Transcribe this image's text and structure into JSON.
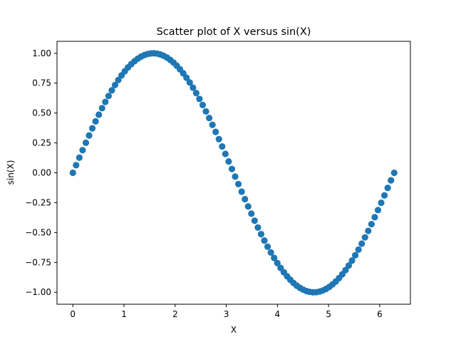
{
  "chart_data": {
    "type": "scatter",
    "title": "Scatter plot of X versus sin(X)",
    "xlabel": "X",
    "ylabel": "sin(X)",
    "xlim": [
      -0.31,
      6.6
    ],
    "ylim": [
      -1.1,
      1.1
    ],
    "xticks": [
      0,
      1,
      2,
      3,
      4,
      5,
      6
    ],
    "xtick_labels": [
      "0",
      "1",
      "2",
      "3",
      "4",
      "5",
      "6"
    ],
    "yticks": [
      1.0,
      0.75,
      0.5,
      0.25,
      0.0,
      -0.25,
      -0.5,
      -0.75,
      -1.0
    ],
    "ytick_labels": [
      "1.00",
      "0.75",
      "0.50",
      "0.25",
      "0.00",
      "−0.25",
      "−0.50",
      "−0.75",
      "−1.00"
    ],
    "grid": false,
    "marker_color": "#1f77b4",
    "series": [
      {
        "x": [
          0.0,
          0.0635,
          0.1269,
          0.1904,
          0.2539,
          0.3173,
          0.3808,
          0.4443,
          0.5077,
          0.5712,
          0.6347,
          0.6981,
          0.7616,
          0.8251,
          0.8885,
          0.952,
          1.0155,
          1.0789,
          1.1424,
          1.2059,
          1.2693,
          1.3328,
          1.3963,
          1.4597,
          1.5232,
          1.5867,
          1.6501,
          1.7136,
          1.7771,
          1.8405,
          1.904,
          1.9675,
          2.0309,
          2.0944,
          2.1579,
          2.2213,
          2.2848,
          2.3483,
          2.4117,
          2.4752,
          2.5387,
          2.6021,
          2.6656,
          2.7291,
          2.7925,
          2.856,
          2.9195,
          2.9829,
          3.0464,
          3.1099,
          3.1733,
          3.2368,
          3.3003,
          3.3637,
          3.4272,
          3.4907,
          3.5541,
          3.6176,
          3.6811,
          3.7445,
          3.808,
          3.8715,
          3.9349,
          3.9984,
          4.0619,
          4.1253,
          4.1888,
          4.2523,
          4.3157,
          4.3792,
          4.4427,
          4.5061,
          4.5696,
          4.6331,
          4.6965,
          4.76,
          4.8235,
          4.8869,
          4.9504,
          5.0139,
          5.0773,
          5.1408,
          5.2043,
          5.2677,
          5.3312,
          5.3947,
          5.4581,
          5.5216,
          5.5851,
          5.6485,
          5.712,
          5.7755,
          5.8389,
          5.9024,
          5.9659,
          6.0293,
          6.0928,
          6.1563,
          6.2197,
          6.2832
        ],
        "y": [
          0.0,
          0.0634,
          0.1266,
          0.1893,
          0.2511,
          0.312,
          0.3717,
          0.4298,
          0.4862,
          0.5406,
          0.5929,
          0.6428,
          0.69,
          0.7346,
          0.7761,
          0.8146,
          0.8497,
          0.8815,
          0.9096,
          0.9341,
          0.9549,
          0.9718,
          0.9848,
          0.9938,
          0.999,
          1.0,
          0.9969,
          0.9898,
          0.9788,
          0.9638,
          0.945,
          0.9224,
          0.8959,
          0.866,
          0.8325,
          0.7958,
          0.7557,
          0.7126,
          0.6668,
          0.6182,
          0.567,
          0.5137,
          0.4582,
          0.401,
          0.3421,
          0.2817,
          0.2203,
          0.158,
          0.095,
          0.0317,
          -0.0317,
          -0.095,
          -0.158,
          -0.2203,
          -0.2817,
          -0.3421,
          -0.401,
          -0.4582,
          -0.5137,
          -0.567,
          -0.6182,
          -0.6668,
          -0.7126,
          -0.7557,
          -0.7958,
          -0.8325,
          -0.866,
          -0.8959,
          -0.9224,
          -0.945,
          -0.9638,
          -0.9788,
          -0.9898,
          -0.9969,
          -1.0,
          -0.999,
          -0.9938,
          -0.9848,
          -0.9718,
          -0.9549,
          -0.9341,
          -0.9096,
          -0.8815,
          -0.8497,
          -0.8146,
          -0.7761,
          -0.7346,
          -0.69,
          -0.6428,
          -0.5929,
          -0.5406,
          -0.4862,
          -0.4298,
          -0.3717,
          -0.312,
          -0.2511,
          -0.1893,
          -0.1266,
          -0.0634,
          0.0
        ]
      }
    ]
  }
}
